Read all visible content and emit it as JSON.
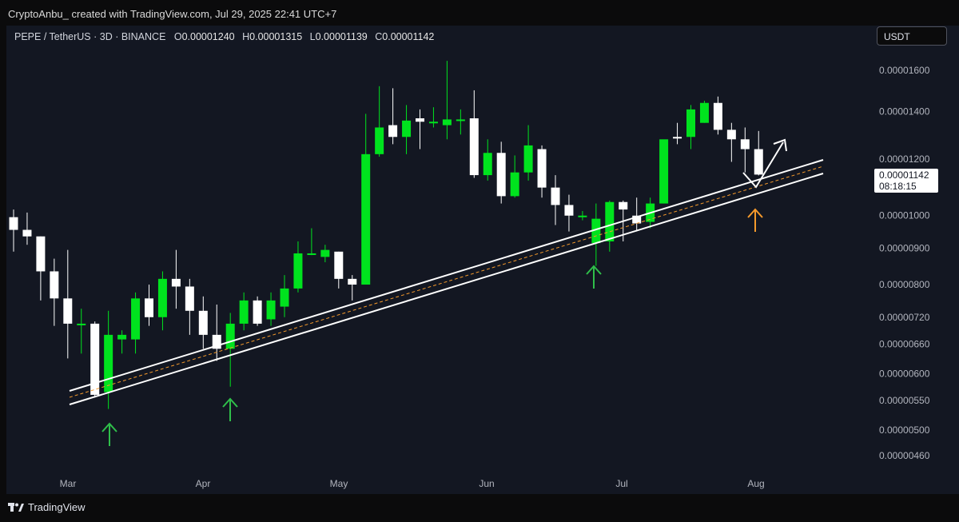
{
  "header": {
    "credit": "CryptoAnbu_ created with TradingView.com, Jul 29, 2025 22:41 UTC+7"
  },
  "legend": {
    "symbol": "PEPE / TetherUS · 3D · BINANCE",
    "o_label": "O",
    "o": "0.00001240",
    "h_label": "H",
    "h": "0.00001315",
    "l_label": "L",
    "l": "0.00001139",
    "c_label": "C",
    "c": "0.00001142"
  },
  "currency": "USDT",
  "last_price": {
    "value": "0.00001142",
    "countdown": "08:18:15"
  },
  "footer": {
    "brand": "TradingView"
  },
  "colors": {
    "up": "#00e31e",
    "down": "#ffffff",
    "background": "#131722",
    "trendline": "#ffffff",
    "midline": "#f59a2c",
    "arrow_green": "#2fbf4a",
    "arrow_orange": "#f59a2c"
  },
  "chart_data": {
    "type": "candlestick",
    "scale": "log",
    "y_ticks": [
      "0.00001600",
      "0.00001400",
      "0.00001200",
      "0.00001000",
      "0.00000900",
      "0.00000800",
      "0.00000720",
      "0.00000660",
      "0.00000600",
      "0.00000550",
      "0.00000500",
      "0.00000460"
    ],
    "x_ticks": [
      "Mar",
      "Apr",
      "May",
      "Jun",
      "Jul",
      "Aug"
    ],
    "candles": [
      {
        "o": 9.95e-06,
        "h": 1.02e-05,
        "l": 8.9e-06,
        "c": 9.55e-06
      },
      {
        "o": 9.55e-06,
        "h": 1.01e-05,
        "l": 9.1e-06,
        "c": 9.35e-06
      },
      {
        "o": 9.35e-06,
        "h": 9.35e-06,
        "l": 7.6e-06,
        "c": 8.35e-06
      },
      {
        "o": 8.35e-06,
        "h": 8.7e-06,
        "l": 7e-06,
        "c": 7.65e-06
      },
      {
        "o": 7.65e-06,
        "h": 8.95e-06,
        "l": 6.3e-06,
        "c": 7.05e-06
      },
      {
        "o": 7.05e-06,
        "h": 7.4e-06,
        "l": 6.4e-06,
        "c": 7.05e-06
      },
      {
        "o": 7.05e-06,
        "h": 7.1e-06,
        "l": 5.55e-06,
        "c": 5.6e-06
      },
      {
        "o": 5.65e-06,
        "h": 7.35e-06,
        "l": 5.35e-06,
        "c": 6.8e-06
      },
      {
        "o": 6.7e-06,
        "h": 6.9e-06,
        "l": 6.4e-06,
        "c": 6.8e-06
      },
      {
        "o": 6.7e-06,
        "h": 7.8e-06,
        "l": 6.4e-06,
        "c": 7.65e-06
      },
      {
        "o": 7.65e-06,
        "h": 8e-06,
        "l": 7e-06,
        "c": 7.2e-06
      },
      {
        "o": 7.2e-06,
        "h": 8.35e-06,
        "l": 6.9e-06,
        "c": 8.15e-06
      },
      {
        "o": 8.15e-06,
        "h": 8.95e-06,
        "l": 7.4e-06,
        "c": 7.95e-06
      },
      {
        "o": 7.95e-06,
        "h": 8.15e-06,
        "l": 6.8e-06,
        "c": 7.35e-06
      },
      {
        "o": 7.35e-06,
        "h": 7.7e-06,
        "l": 6.5e-06,
        "c": 6.8e-06
      },
      {
        "o": 6.8e-06,
        "h": 7.5e-06,
        "l": 6.25e-06,
        "c": 6.5e-06
      },
      {
        "o": 6.5e-06,
        "h": 7.3e-06,
        "l": 5.75e-06,
        "c": 7.05e-06
      },
      {
        "o": 7.05e-06,
        "h": 7.8e-06,
        "l": 6.9e-06,
        "c": 7.6e-06
      },
      {
        "o": 7.6e-06,
        "h": 7.7e-06,
        "l": 7e-06,
        "c": 7.05e-06
      },
      {
        "o": 7.15e-06,
        "h": 7.8e-06,
        "l": 7e-06,
        "c": 7.6e-06
      },
      {
        "o": 7.45e-06,
        "h": 8.25e-06,
        "l": 7.2e-06,
        "c": 7.9e-06
      },
      {
        "o": 7.9e-06,
        "h": 9.2e-06,
        "l": 7.8e-06,
        "c": 8.85e-06
      },
      {
        "o": 8.85e-06,
        "h": 9.6e-06,
        "l": 8.8e-06,
        "c": 8.85e-06
      },
      {
        "o": 8.75e-06,
        "h": 9.1e-06,
        "l": 8.6e-06,
        "c": 8.95e-06
      },
      {
        "o": 8.9e-06,
        "h": 8.9e-06,
        "l": 7.9e-06,
        "c": 8.15e-06
      },
      {
        "o": 8.15e-06,
        "h": 8.25e-06,
        "l": 7.6e-06,
        "c": 8e-06
      },
      {
        "o": 8e-06,
        "h": 1.39e-05,
        "l": 8e-06,
        "c": 1.22e-05
      },
      {
        "o": 1.22e-05,
        "h": 1.52e-05,
        "l": 1.21e-05,
        "c": 1.33e-05
      },
      {
        "o": 1.34e-05,
        "h": 1.51e-05,
        "l": 1.26e-05,
        "c": 1.29e-05
      },
      {
        "o": 1.29e-05,
        "h": 1.43e-05,
        "l": 1.22e-05,
        "c": 1.36e-05
      },
      {
        "o": 1.37e-05,
        "h": 1.41e-05,
        "l": 1.24e-05,
        "c": 1.355e-05
      },
      {
        "o": 1.355e-05,
        "h": 1.42e-05,
        "l": 1.33e-05,
        "c": 1.355e-05
      },
      {
        "o": 1.34e-05,
        "h": 1.65e-05,
        "l": 1.28e-05,
        "c": 1.365e-05
      },
      {
        "o": 1.365e-05,
        "h": 1.41e-05,
        "l": 1.3e-05,
        "c": 1.365e-05
      },
      {
        "o": 1.37e-05,
        "h": 1.5e-05,
        "l": 1.13e-05,
        "c": 1.14e-05
      },
      {
        "o": 1.14e-05,
        "h": 1.28e-05,
        "l": 1.12e-05,
        "c": 1.225e-05
      },
      {
        "o": 1.225e-05,
        "h": 1.27e-05,
        "l": 1.04e-05,
        "c": 1.065e-05
      },
      {
        "o": 1.065e-05,
        "h": 1.215e-05,
        "l": 1.06e-05,
        "c": 1.15e-05
      },
      {
        "o": 1.15e-05,
        "h": 1.34e-05,
        "l": 1.12e-05,
        "c": 1.255e-05
      },
      {
        "o": 1.24e-05,
        "h": 1.255e-05,
        "l": 1.06e-05,
        "c": 1.095e-05
      },
      {
        "o": 1.095e-05,
        "h": 1.14e-05,
        "l": 9.7e-06,
        "c": 1.035e-05
      },
      {
        "o": 1.035e-05,
        "h": 1.07e-05,
        "l": 9.5e-06,
        "c": 1e-05
      },
      {
        "o": 1e-05,
        "h": 1.015e-05,
        "l": 9.85e-06,
        "c": 1e-05
      },
      {
        "o": 9.15e-06,
        "h": 1.04e-05,
        "l": 8.5e-06,
        "c": 9.9e-06
      },
      {
        "o": 9.2e-06,
        "h": 1.05e-05,
        "l": 8.9e-06,
        "c": 1.045e-05
      },
      {
        "o": 1.045e-05,
        "h": 1.05e-05,
        "l": 9.2e-06,
        "c": 1.02e-05
      },
      {
        "o": 1e-05,
        "h": 1.06e-05,
        "l": 9.5e-06,
        "c": 9.75e-06
      },
      {
        "o": 9.8e-06,
        "h": 1.06e-05,
        "l": 9.6e-06,
        "c": 1.04e-05
      },
      {
        "o": 1.04e-05,
        "h": 1.27e-05,
        "l": 1.04e-05,
        "c": 1.28e-05
      },
      {
        "o": 1.29e-05,
        "h": 1.35e-05,
        "l": 1.26e-05,
        "c": 1.285e-05
      },
      {
        "o": 1.29e-05,
        "h": 1.43e-05,
        "l": 1.24e-05,
        "c": 1.41e-05
      },
      {
        "o": 1.35e-05,
        "h": 1.45e-05,
        "l": 1.35e-05,
        "c": 1.44e-05
      },
      {
        "o": 1.44e-05,
        "h": 1.47e-05,
        "l": 1.3e-05,
        "c": 1.32e-05
      },
      {
        "o": 1.32e-05,
        "h": 1.35e-05,
        "l": 1.19e-05,
        "c": 1.28e-05
      },
      {
        "o": 1.28e-05,
        "h": 1.33e-05,
        "l": 1.15e-05,
        "c": 1.24e-05
      },
      {
        "o": 1.24e-05,
        "h": 1.315e-05,
        "l": 1.139e-05,
        "c": 1.142e-05
      }
    ]
  }
}
